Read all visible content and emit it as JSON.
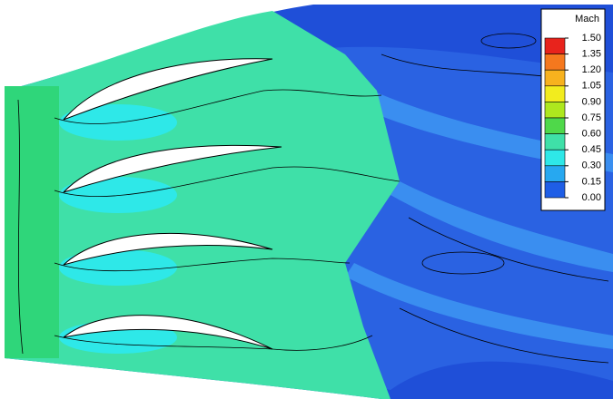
{
  "chart_data": {
    "type": "contour",
    "colorbar": {
      "title": "Mach",
      "ticks": [
        {
          "value": 1.5,
          "label": "1.50"
        },
        {
          "value": 1.35,
          "label": "1.35"
        },
        {
          "value": 1.2,
          "label": "1.20"
        },
        {
          "value": 1.05,
          "label": "1.05"
        },
        {
          "value": 0.9,
          "label": "0.90"
        },
        {
          "value": 0.75,
          "label": "0.75"
        },
        {
          "value": 0.6,
          "label": "0.60"
        },
        {
          "value": 0.45,
          "label": "0.45"
        },
        {
          "value": 0.3,
          "label": "0.30"
        },
        {
          "value": 0.15,
          "label": "0.15"
        },
        {
          "value": 0,
          "label": "0.00"
        }
      ],
      "colors": [
        "#e8231c",
        "#f5781e",
        "#f7b21e",
        "#f2ec1e",
        "#aee81e",
        "#4fd84a",
        "#3fe0a8",
        "#2ee8e8",
        "#27a8f0",
        "#1f5ee6"
      ]
    }
  }
}
